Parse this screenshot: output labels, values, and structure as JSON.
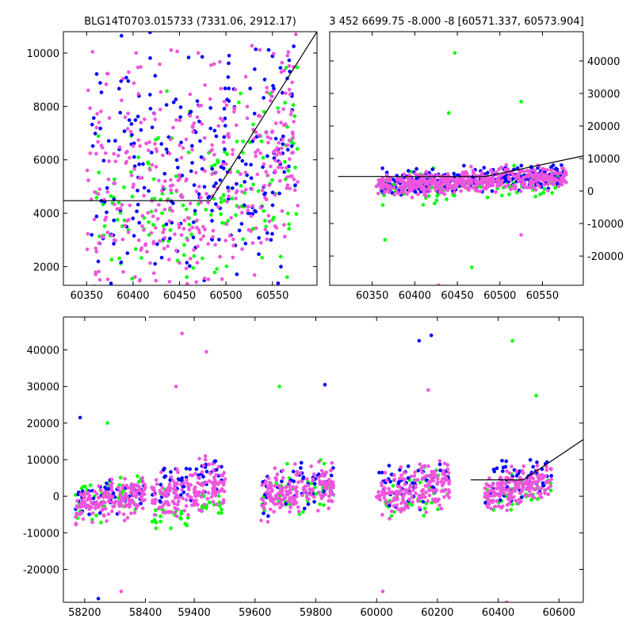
{
  "figure": {
    "title_left": "BLG14T0703.015733 (7331.06, 2912.17)",
    "title_right": "3 452 6699.75 -8.000 -8 [60571.337, 60573.904]"
  },
  "colors": {
    "blue": "#0000ff",
    "green": "#00ff00",
    "violet": "#ee55dd",
    "model": "#000000"
  },
  "chart_data": [
    {
      "id": "zoom_top_left",
      "type": "scatter",
      "title": "BLG14T0703.015733 (7331.06, 2912.17)",
      "xlim": [
        60325,
        60598
      ],
      "ylim": [
        1300,
        10800
      ],
      "xticks": [
        60350,
        60400,
        60450,
        60500,
        60550
      ],
      "yticks": [
        2000,
        4000,
        6000,
        8000,
        10000
      ],
      "ytick_side": "left",
      "series": [
        {
          "color": "blue",
          "x_range": [
            60355,
            60575
          ],
          "y_center": 5200,
          "y_spread": 2600,
          "n": 260
        },
        {
          "color": "green",
          "x_range": [
            60360,
            60578
          ],
          "y_center": 3800,
          "y_spread": 1800,
          "n": 180
        },
        {
          "color": "violet",
          "x_range": [
            60350,
            60578
          ],
          "y_center": 4600,
          "y_spread": 2200,
          "n": 420
        }
      ],
      "model_line": {
        "x": [
          60325,
          60483,
          60598
        ],
        "y": [
          4470,
          4470,
          10800
        ]
      }
    },
    {
      "id": "zoom_top_right",
      "type": "scatter",
      "title": "3 452 6699.75 -8.000 -8 [60571.337, 60573.904]",
      "xlim": [
        60300,
        60598
      ],
      "ylim": [
        -29000,
        49000
      ],
      "xticks": [
        60350,
        60400,
        60450,
        60500,
        60550
      ],
      "yticks": [
        -20000,
        -10000,
        0,
        10000,
        20000,
        30000,
        40000
      ],
      "ytick_side": "right",
      "series": [
        {
          "color": "blue",
          "x_range": [
            60360,
            60575
          ],
          "y_center": 3500,
          "y_spread": 2500,
          "n": 260
        },
        {
          "color": "green",
          "x_range": [
            60360,
            60575
          ],
          "y_center": 1500,
          "y_spread": 2500,
          "n": 140
        },
        {
          "color": "violet",
          "x_range": [
            60355,
            60578
          ],
          "y_center": 2800,
          "y_spread": 2000,
          "n": 520
        }
      ],
      "outliers": [
        {
          "x": 60447,
          "y": 42500,
          "color": "green"
        },
        {
          "x": 60440,
          "y": 24000,
          "color": "green"
        },
        {
          "x": 60525,
          "y": 27500,
          "color": "green"
        },
        {
          "x": 60365,
          "y": -15000,
          "color": "green"
        },
        {
          "x": 60467,
          "y": -23500,
          "color": "green"
        },
        {
          "x": 60525,
          "y": -13500,
          "color": "violet"
        },
        {
          "x": 60428,
          "y": -29000,
          "color": "violet"
        }
      ],
      "model_line": {
        "x": [
          60310,
          60483,
          60598
        ],
        "y": [
          4470,
          4470,
          10800
        ]
      }
    },
    {
      "id": "full_bottom",
      "type": "scatter",
      "xlim": [
        58130,
        60680
      ],
      "x_axis_break": {
        "from": 58400,
        "to": 59250
      },
      "ylim": [
        -29000,
        49000
      ],
      "xticks": [
        58200,
        58400,
        59400,
        59600,
        59800,
        60000,
        60200,
        60400,
        60600
      ],
      "yticks": [
        -20000,
        -10000,
        0,
        10000,
        20000,
        30000,
        40000
      ],
      "ytick_side": "left",
      "seasons": [
        {
          "x_range": [
            58170,
            58410
          ],
          "blue_center": 500,
          "violet_center": -1000,
          "green_center": 0,
          "spread": 2500
        },
        {
          "x_range": [
            59260,
            59505
          ],
          "blue_center": 4500,
          "violet_center": 1500,
          "green_center": -3500,
          "spread": 3000
        },
        {
          "x_range": [
            59620,
            59860
          ],
          "blue_center": 2500,
          "violet_center": 1500,
          "green_center": 500,
          "spread": 3000
        },
        {
          "x_range": [
            60000,
            60240
          ],
          "blue_center": 4000,
          "violet_center": 2000,
          "green_center": 500,
          "spread": 3000
        },
        {
          "x_range": [
            60355,
            60575
          ],
          "blue_center": 4500,
          "violet_center": 2500,
          "green_center": 1500,
          "spread": 2500
        }
      ],
      "outliers": [
        {
          "x": 58185,
          "y": 21500,
          "color": "blue"
        },
        {
          "x": 58275,
          "y": 20000,
          "color": "green"
        },
        {
          "x": 58245,
          "y": -28000,
          "color": "blue"
        },
        {
          "x": 58320,
          "y": -26000,
          "color": "violet"
        },
        {
          "x": 59360,
          "y": 44500,
          "color": "violet"
        },
        {
          "x": 59440,
          "y": 39500,
          "color": "violet"
        },
        {
          "x": 59340,
          "y": 30000,
          "color": "violet"
        },
        {
          "x": 59680,
          "y": 30000,
          "color": "green"
        },
        {
          "x": 59830,
          "y": 30500,
          "color": "blue"
        },
        {
          "x": 60140,
          "y": 42500,
          "color": "blue"
        },
        {
          "x": 60180,
          "y": 44000,
          "color": "blue"
        },
        {
          "x": 60170,
          "y": 29000,
          "color": "violet"
        },
        {
          "x": 60020,
          "y": -26000,
          "color": "violet"
        },
        {
          "x": 60447,
          "y": 42500,
          "color": "green"
        },
        {
          "x": 60525,
          "y": 27500,
          "color": "green"
        },
        {
          "x": 60428,
          "y": -29000,
          "color": "violet"
        }
      ],
      "model_line": {
        "x": [
          60310,
          60483,
          60680
        ],
        "y": [
          4470,
          4470,
          15500
        ]
      }
    }
  ]
}
